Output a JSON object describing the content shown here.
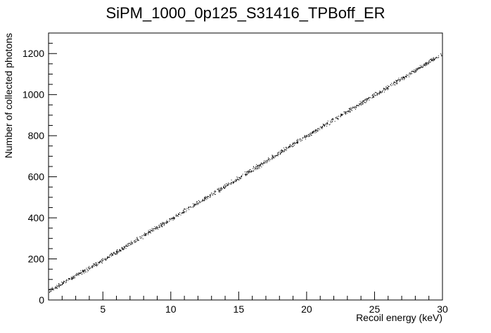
{
  "chart_data": {
    "type": "scatter",
    "title": "SiPM_1000_0p125_S31416_TPBoff_ER",
    "xlabel": "Recoil energy (keV)",
    "ylabel": "Number of collected photons",
    "xlim": [
      1,
      30
    ],
    "ylim": [
      0,
      1300
    ],
    "xticks": [
      5,
      10,
      15,
      20,
      25,
      30
    ],
    "yticks": [
      0,
      200,
      400,
      600,
      800,
      1000,
      1200
    ],
    "grid": false,
    "legend": "none",
    "marker_color": "#000000",
    "trend": {
      "description": "dense linear band of points",
      "x": [
        1,
        5,
        10,
        15,
        20,
        25,
        30
      ],
      "y": [
        45,
        195,
        395,
        595,
        800,
        1000,
        1200
      ],
      "spread": 8
    }
  }
}
